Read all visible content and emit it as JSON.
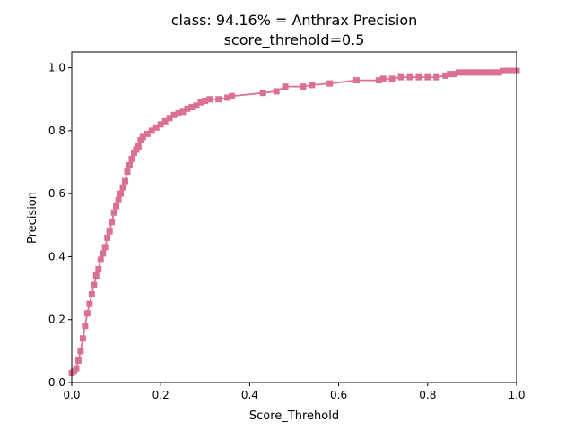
{
  "chart_data": {
    "type": "line",
    "title": "class: 94.16% = Anthrax Precision",
    "subtitle": "score_threhold=0.5",
    "xlabel": "Score_Threhold",
    "ylabel": "Precision",
    "xlim": [
      0.0,
      1.0
    ],
    "ylim": [
      0.0,
      1.05
    ],
    "xticks": [
      "0.0",
      "0.2",
      "0.4",
      "0.6",
      "0.8",
      "1.0"
    ],
    "xtick_values": [
      0.0,
      0.2,
      0.4,
      0.6,
      0.8,
      1.0
    ],
    "yticks": [
      "0.0",
      "0.2",
      "0.4",
      "0.6",
      "0.8",
      "1.0"
    ],
    "ytick_values": [
      0.0,
      0.2,
      0.4,
      0.6,
      0.8,
      1.0
    ],
    "grid": false,
    "legend": "none",
    "series": [
      {
        "color": "#db7093",
        "marker": "square",
        "x": [
          0.0,
          0.005,
          0.01,
          0.015,
          0.02,
          0.025,
          0.03,
          0.035,
          0.04,
          0.045,
          0.05,
          0.055,
          0.06,
          0.065,
          0.07,
          0.075,
          0.08,
          0.085,
          0.09,
          0.095,
          0.1,
          0.105,
          0.11,
          0.115,
          0.12,
          0.125,
          0.13,
          0.135,
          0.14,
          0.145,
          0.15,
          0.155,
          0.16,
          0.17,
          0.18,
          0.19,
          0.2,
          0.21,
          0.22,
          0.23,
          0.24,
          0.25,
          0.26,
          0.27,
          0.28,
          0.29,
          0.3,
          0.31,
          0.33,
          0.35,
          0.36,
          0.43,
          0.46,
          0.48,
          0.52,
          0.54,
          0.58,
          0.64,
          0.69,
          0.7,
          0.72,
          0.74,
          0.76,
          0.78,
          0.8,
          0.82,
          0.84,
          0.85,
          0.86,
          0.87,
          0.88,
          0.89,
          0.9,
          0.91,
          0.92,
          0.93,
          0.94,
          0.95,
          0.96,
          0.97,
          0.98,
          0.99,
          1.0
        ],
        "y": [
          0.03,
          0.035,
          0.045,
          0.07,
          0.1,
          0.14,
          0.18,
          0.22,
          0.25,
          0.28,
          0.31,
          0.34,
          0.36,
          0.39,
          0.41,
          0.43,
          0.46,
          0.48,
          0.51,
          0.54,
          0.56,
          0.58,
          0.6,
          0.62,
          0.64,
          0.67,
          0.69,
          0.71,
          0.73,
          0.74,
          0.75,
          0.77,
          0.78,
          0.79,
          0.8,
          0.81,
          0.82,
          0.83,
          0.84,
          0.85,
          0.855,
          0.86,
          0.87,
          0.875,
          0.88,
          0.89,
          0.895,
          0.9,
          0.9,
          0.905,
          0.91,
          0.92,
          0.925,
          0.94,
          0.94,
          0.945,
          0.95,
          0.96,
          0.96,
          0.965,
          0.965,
          0.97,
          0.97,
          0.97,
          0.97,
          0.97,
          0.975,
          0.98,
          0.98,
          0.985,
          0.985,
          0.985,
          0.985,
          0.985,
          0.985,
          0.985,
          0.985,
          0.985,
          0.985,
          0.99,
          0.99,
          0.99,
          0.99
        ]
      }
    ]
  }
}
